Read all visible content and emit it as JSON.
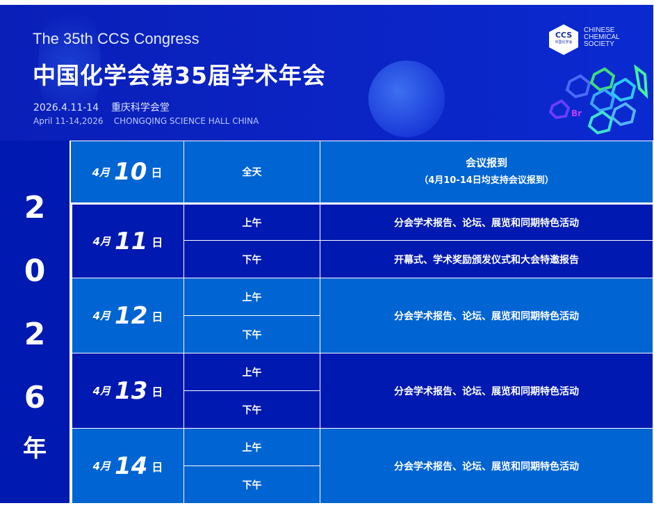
{
  "header": {
    "en_title": "The 35th CCS Congress",
    "cn_title": "中国化学会第35届学术年会",
    "date_cn": "2026.4.11-14",
    "venue_cn": "重庆科学会堂",
    "date_en": "April 11-14,2026",
    "venue_en": "CHONGQING SCIENCE HALL CHINA",
    "logo_abbr": "CCS",
    "logo_cn": "中国化学会",
    "logo_text": [
      "CHINESE",
      "CHEMICAL",
      "SOCIETY"
    ]
  },
  "year": [
    "2",
    "0",
    "2",
    "6",
    "年"
  ],
  "colors": {
    "dark": "#0019b0",
    "light": "#0064d2"
  },
  "schedule": [
    {
      "month": "4月",
      "day": "10",
      "suffix": "日",
      "sessions": [
        {
          "period": "全天"
        }
      ],
      "content": "会议报到",
      "note": "（4月10-14日均支持会议报到）"
    },
    {
      "month": "4月",
      "day": "11",
      "suffix": "日",
      "sessions": [
        {
          "period": "上午",
          "content": "分会学术报告、论坛、展览和同期特色活动"
        },
        {
          "period": "下午",
          "content": "开幕式、学术奖励颁发仪式和大会特邀报告"
        }
      ]
    },
    {
      "month": "4月",
      "day": "12",
      "suffix": "日",
      "sessions": [
        {
          "period": "上午"
        },
        {
          "period": "下午"
        }
      ],
      "content": "分会学术报告、论坛、展览和同期特色活动"
    },
    {
      "month": "4月",
      "day": "13",
      "suffix": "日",
      "sessions": [
        {
          "period": "上午"
        },
        {
          "period": "下午"
        }
      ],
      "content": "分会学术报告、论坛、展览和同期特色活动"
    },
    {
      "month": "4月",
      "day": "14",
      "suffix": "日",
      "sessions": [
        {
          "period": "上午"
        },
        {
          "period": "下午"
        }
      ],
      "content": "分会学术报告、论坛、展览和同期特色活动"
    }
  ]
}
